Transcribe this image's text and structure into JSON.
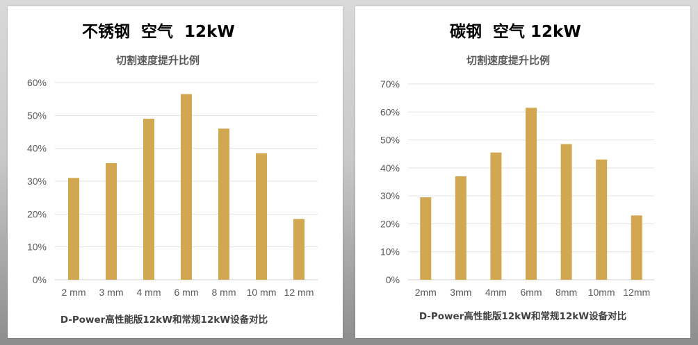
{
  "chart_data": [
    {
      "type": "bar",
      "title": "不锈钢  空气  12kW",
      "subtitle": "切割速度提升比例",
      "footnote": "D-Power高性能版12kW和常规12kW设备对比",
      "categories": [
        "2 mm",
        "3 mm",
        "4 mm",
        "6 mm",
        "8 mm",
        "10 mm",
        "12 mm"
      ],
      "values": [
        31,
        35.5,
        49,
        56.5,
        46,
        38.5,
        18.5
      ],
      "ylim": [
        0,
        60
      ],
      "yticks": [
        "0%",
        "10%",
        "20%",
        "30%",
        "40%",
        "50%",
        "60%"
      ],
      "grid": true,
      "bar_color": "#d1a851"
    },
    {
      "type": "bar",
      "title": "碳钢  空气 12kW",
      "subtitle": "切割速度提升比例",
      "footnote": "D-Power高性能版12kW和常规12kW设备对比",
      "categories": [
        "2mm",
        "3mm",
        "4mm",
        "6mm",
        "8mm",
        "10mm",
        "12mm"
      ],
      "values": [
        29.5,
        37,
        45.5,
        61.5,
        48.5,
        43,
        23
      ],
      "ylim": [
        0,
        70
      ],
      "yticks": [
        "0%",
        "10%",
        "20%",
        "30%",
        "40%",
        "50%",
        "60%",
        "70%"
      ],
      "grid": true,
      "bar_color": "#d1a851"
    }
  ]
}
